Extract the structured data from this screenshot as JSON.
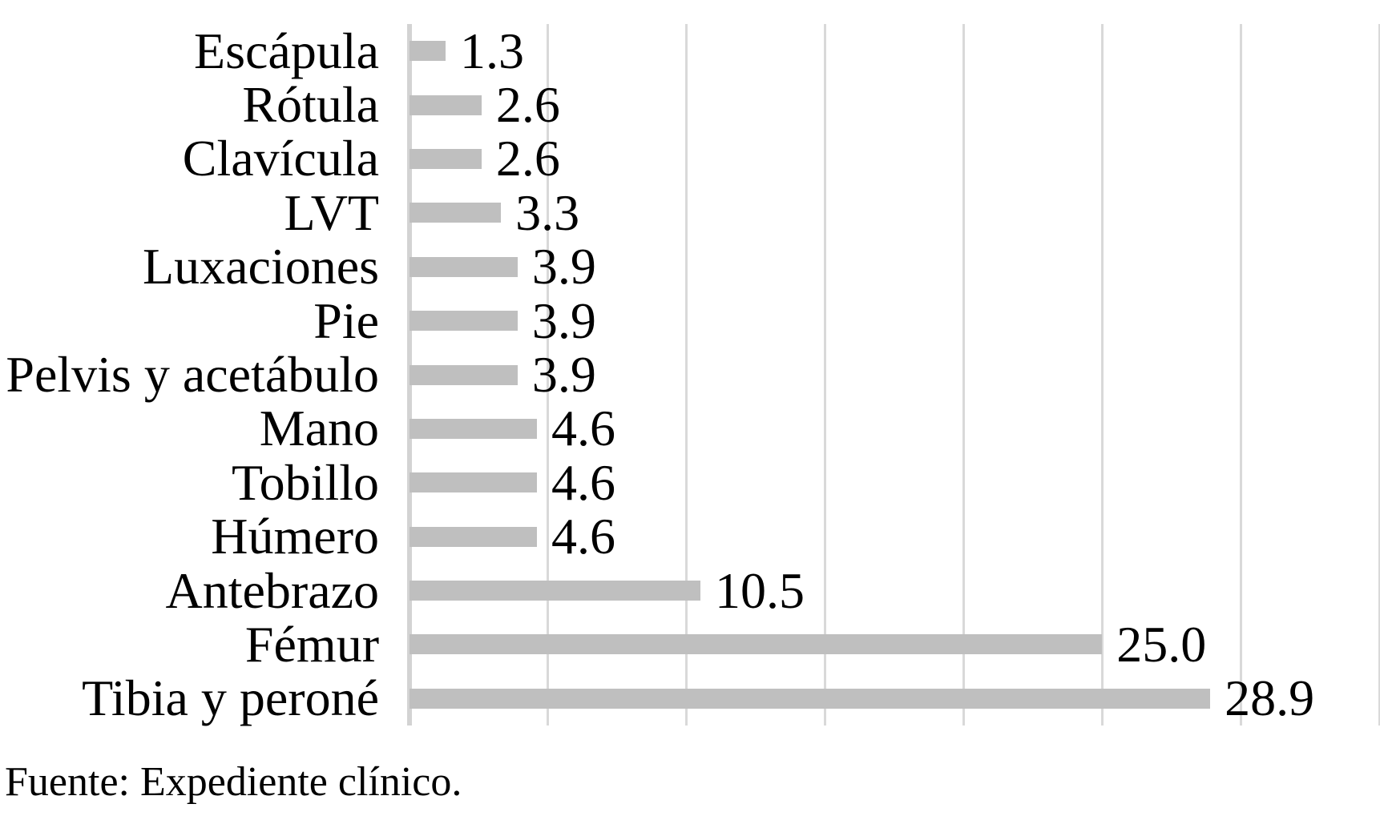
{
  "chart_data": {
    "type": "bar",
    "orientation": "horizontal",
    "title": "",
    "xlabel": "",
    "ylabel": "",
    "categories": [
      "Escápula",
      "Rótula",
      "Clavícula",
      "LVT",
      "Luxaciones",
      "Pie",
      "Pelvis y acetábulo",
      "Mano",
      "Tobillo",
      "Húmero",
      "Antebrazo",
      "Fémur",
      "Tibia y peroné"
    ],
    "values": [
      1.3,
      2.6,
      2.6,
      3.3,
      3.9,
      3.9,
      3.9,
      4.6,
      4.6,
      4.6,
      10.5,
      25.0,
      28.9
    ],
    "value_labels": [
      "1.3",
      "2.6",
      "2.6",
      "3.3",
      "3.9",
      "3.9",
      "3.9",
      "4.6",
      "4.6",
      "4.6",
      "10.5",
      "25.0",
      "28.9"
    ],
    "xlim": [
      0,
      35
    ],
    "gridline_step": 5,
    "grid": true,
    "legend": false,
    "tick_labels_shown": false,
    "colors": {
      "bar": "#bfbfbf",
      "gridline": "#d9d9d9",
      "axis_line": "#d3d3d3",
      "text": "#000000",
      "background": "#ffffff"
    }
  },
  "footer": {
    "source_note": "Fuente: Expediente clínico."
  }
}
